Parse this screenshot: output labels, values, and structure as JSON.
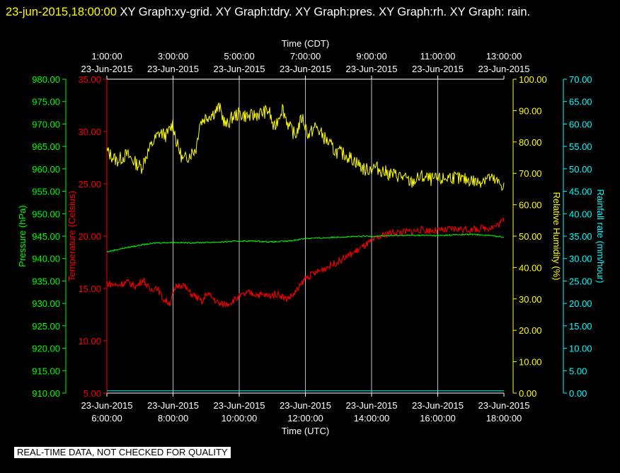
{
  "header": {
    "timestamp": "23-jun-2015,18:00:00",
    "title": " XY Graph:xy-grid.  XY Graph:tdry.  XY Graph:pres.  XY Graph:rh.  XY Graph: rain."
  },
  "footer": {
    "note": "REAL-TIME DATA, NOT CHECKED FOR QUALITY"
  },
  "colors": {
    "pressure": "#00ff00",
    "temperature": "#ff0000",
    "humidity": "#ffff00",
    "rain": "#00ffff",
    "grid": "#bbbbcc"
  },
  "chart_data": {
    "type": "line",
    "grid": true,
    "top_axis": {
      "title": "Time (CDT)",
      "ticks": [
        {
          "time": "1:00:00",
          "date": "23-Jun-2015"
        },
        {
          "time": "3:00:00",
          "date": "23-Jun-2015"
        },
        {
          "time": "5:00:00",
          "date": "23-Jun-2015"
        },
        {
          "time": "7:00:00",
          "date": "23-Jun-2015"
        },
        {
          "time": "9:00:00",
          "date": "23-Jun-2015"
        },
        {
          "time": "11:00:00",
          "date": "23-Jun-2015"
        },
        {
          "time": "13:00:00",
          "date": "23-Jun-2015"
        }
      ]
    },
    "bottom_axis": {
      "title": "Time (UTC)",
      "ticks": [
        {
          "date": "23-Jun-2015",
          "time": "6:00:00"
        },
        {
          "date": "23-Jun-2015",
          "time": "8:00:00"
        },
        {
          "date": "23-Jun-2015",
          "time": "10:00:00"
        },
        {
          "date": "23-Jun-2015",
          "time": "12:00:00"
        },
        {
          "date": "23-Jun-2015",
          "time": "14:00:00"
        },
        {
          "date": "23-Jun-2015",
          "time": "16:00:00"
        },
        {
          "date": "23-Jun-2015",
          "time": "18:00:00"
        }
      ],
      "x_range_utc_hours": [
        6,
        18
      ]
    },
    "axes": {
      "pressure": {
        "label": "Pressure (hPa)",
        "range": [
          910,
          980
        ],
        "ticks": [
          "910.00",
          "915.00",
          "920.00",
          "925.00",
          "930.00",
          "935.00",
          "940.00",
          "945.00",
          "950.00",
          "955.00",
          "960.00",
          "965.00",
          "970.00",
          "975.00",
          "980.00"
        ]
      },
      "temperature": {
        "label": "Temperature (Celsius)",
        "range": [
          5,
          35
        ],
        "ticks": [
          "5.00",
          "10.00",
          "15.00",
          "20.00",
          "25.00",
          "30.00",
          "35.00"
        ]
      },
      "humidity": {
        "label": "Relative Humidity (%)",
        "range": [
          0,
          100
        ],
        "ticks": [
          "0.00",
          "10.00",
          "20.00",
          "30.00",
          "40.00",
          "50.00",
          "60.00",
          "70.00",
          "80.00",
          "90.00",
          "100.00"
        ]
      },
      "rain": {
        "label": "Rainfall rate (mm/hour)",
        "range": [
          0,
          70
        ],
        "ticks": [
          "0.00",
          "5.00",
          "10.00",
          "15.00",
          "20.00",
          "25.00",
          "30.00",
          "35.00",
          "40.00",
          "45.00",
          "50.00",
          "55.00",
          "60.00",
          "65.00",
          "70.00"
        ]
      }
    },
    "series": [
      {
        "key": "humidity",
        "x": [
          6.0,
          6.3,
          6.6,
          6.9,
          7.05,
          7.2,
          7.4,
          7.6,
          7.8,
          8.0,
          8.1,
          8.3,
          8.5,
          8.7,
          8.8,
          9.0,
          9.2,
          9.4,
          9.6,
          9.8,
          10.0,
          10.3,
          10.6,
          10.9,
          11.05,
          11.3,
          11.5,
          11.7,
          11.9,
          12.1,
          12.3,
          12.6,
          12.9,
          13.2,
          13.5,
          13.8,
          14.1,
          14.5,
          14.9,
          15.2,
          15.5,
          15.8,
          16.1,
          16.4,
          16.7,
          17.0,
          17.2,
          17.5,
          17.8,
          18.0
        ],
        "y": [
          77,
          74,
          76,
          73,
          72,
          76,
          80,
          83,
          82,
          86,
          80,
          74,
          76,
          78,
          86,
          88,
          89,
          91,
          85,
          88,
          89,
          88,
          89,
          90,
          84,
          91,
          85,
          82,
          88,
          82,
          85,
          81,
          77,
          76,
          74,
          71,
          72,
          70,
          69,
          67,
          69,
          68,
          68,
          69,
          68,
          68,
          67,
          69,
          67,
          66
        ]
      },
      {
        "key": "temperature",
        "x": [
          6.0,
          6.3,
          6.6,
          6.9,
          7.1,
          7.3,
          7.5,
          7.7,
          7.9,
          8.0,
          8.1,
          8.3,
          8.5,
          8.7,
          8.9,
          9.0,
          9.2,
          9.4,
          9.6,
          9.8,
          10.0,
          10.3,
          10.6,
          10.9,
          11.2,
          11.4,
          11.6,
          11.8,
          12.0,
          12.5,
          13.0,
          13.5,
          14.0,
          14.5,
          15.0,
          15.5,
          16.0,
          16.5,
          17.0,
          17.5,
          17.8,
          18.0
        ],
        "y": [
          15.5,
          15.3,
          15.6,
          15.2,
          15.9,
          14.8,
          15.2,
          14.0,
          13.6,
          14.4,
          15.2,
          15.4,
          14.6,
          14.2,
          13.6,
          14.6,
          14.1,
          13.5,
          13.5,
          13.8,
          14.2,
          14.6,
          14.4,
          14.3,
          14.5,
          14.0,
          14.3,
          15.0,
          16.0,
          16.8,
          17.6,
          18.5,
          19.5,
          20.3,
          20.4,
          20.6,
          20.5,
          20.7,
          20.6,
          20.8,
          21.0,
          21.6
        ]
      },
      {
        "key": "pressure",
        "x": [
          6.0,
          6.5,
          7.0,
          7.5,
          8.0,
          8.5,
          9.0,
          9.5,
          10.0,
          10.5,
          11.0,
          11.5,
          12.0,
          12.5,
          13.0,
          13.5,
          14.0,
          14.5,
          15.0,
          15.5,
          16.0,
          16.5,
          17.0,
          17.5,
          18.0
        ],
        "y": [
          941.5,
          942.3,
          943.0,
          943.5,
          943.6,
          943.5,
          943.6,
          943.7,
          943.9,
          943.9,
          943.7,
          943.9,
          944.5,
          944.6,
          944.8,
          944.9,
          945.0,
          945.1,
          945.2,
          945.2,
          945.1,
          945.3,
          945.4,
          945.2,
          944.8
        ]
      },
      {
        "key": "rain",
        "x": [
          6.0,
          18.0
        ],
        "y": [
          0.5,
          0.5
        ]
      }
    ]
  }
}
